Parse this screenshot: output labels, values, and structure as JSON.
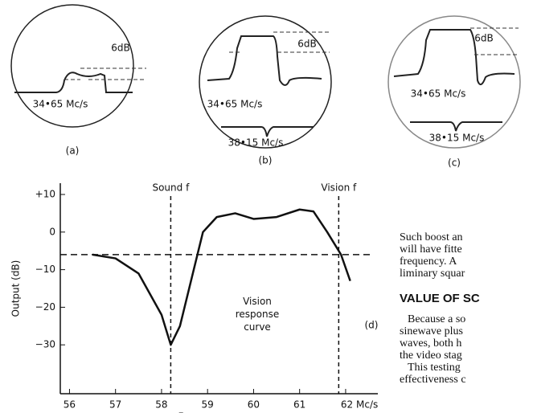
{
  "scopes": [
    {
      "caption": "(a)",
      "level": "6dB",
      "sound": "34•65 Mc/s"
    },
    {
      "caption": "(b)",
      "level": "6dB",
      "sound": "34•65 Mc/s",
      "vision": "38•15 Mc/s"
    },
    {
      "caption": "(c)",
      "level": "6dB",
      "sound": "34•65 Mc/s",
      "vision": "38•15 Mc/s"
    }
  ],
  "chart_data": {
    "type": "line",
    "x_label": "Frequency",
    "y_label": "Output (dB)",
    "panel": "(d)",
    "annotation": "Vision response curve",
    "x": [
      56.5,
      57,
      57.5,
      58,
      58.2,
      58.4,
      58.7,
      58.9,
      59.2,
      59.6,
      60,
      60.5,
      61,
      61.3,
      61.6,
      61.9,
      62.1
    ],
    "series": [
      {
        "name": "Vision response curve",
        "color": "#111111",
        "values": [
          -6,
          -7,
          -11,
          -22,
          -30,
          -25,
          -10,
          0,
          4,
          5,
          3.5,
          4,
          6,
          5.5,
          0,
          -6,
          -13
        ]
      }
    ],
    "xlim": [
      55.8,
      62.7
    ],
    "ylim": [
      -43,
      13
    ],
    "xticks": [
      56,
      57,
      58,
      59,
      60,
      61,
      {
        "value": 62,
        "label": "62 Mc/s"
      }
    ],
    "yticks": [
      {
        "value": 10,
        "label": "+10"
      },
      0,
      {
        "value": -10,
        "label": "−10"
      },
      {
        "value": -20,
        "label": "−20"
      },
      {
        "value": -30,
        "label": "−30"
      }
    ],
    "reference_level": -6,
    "markers": [
      {
        "label": "Sound f",
        "x": 58.2
      },
      {
        "label": "Vision f",
        "x": 61.85
      }
    ]
  },
  "text": {
    "paragraph": [
      "Such boost an",
      "will have fitte",
      "frequency.  A",
      "liminary squar"
    ],
    "heading": "VALUE OF SC",
    "body": [
      "Because a so",
      "sinewave plus",
      "waves, both h",
      "the video stag",
      "This testing",
      "effectiveness c"
    ]
  }
}
